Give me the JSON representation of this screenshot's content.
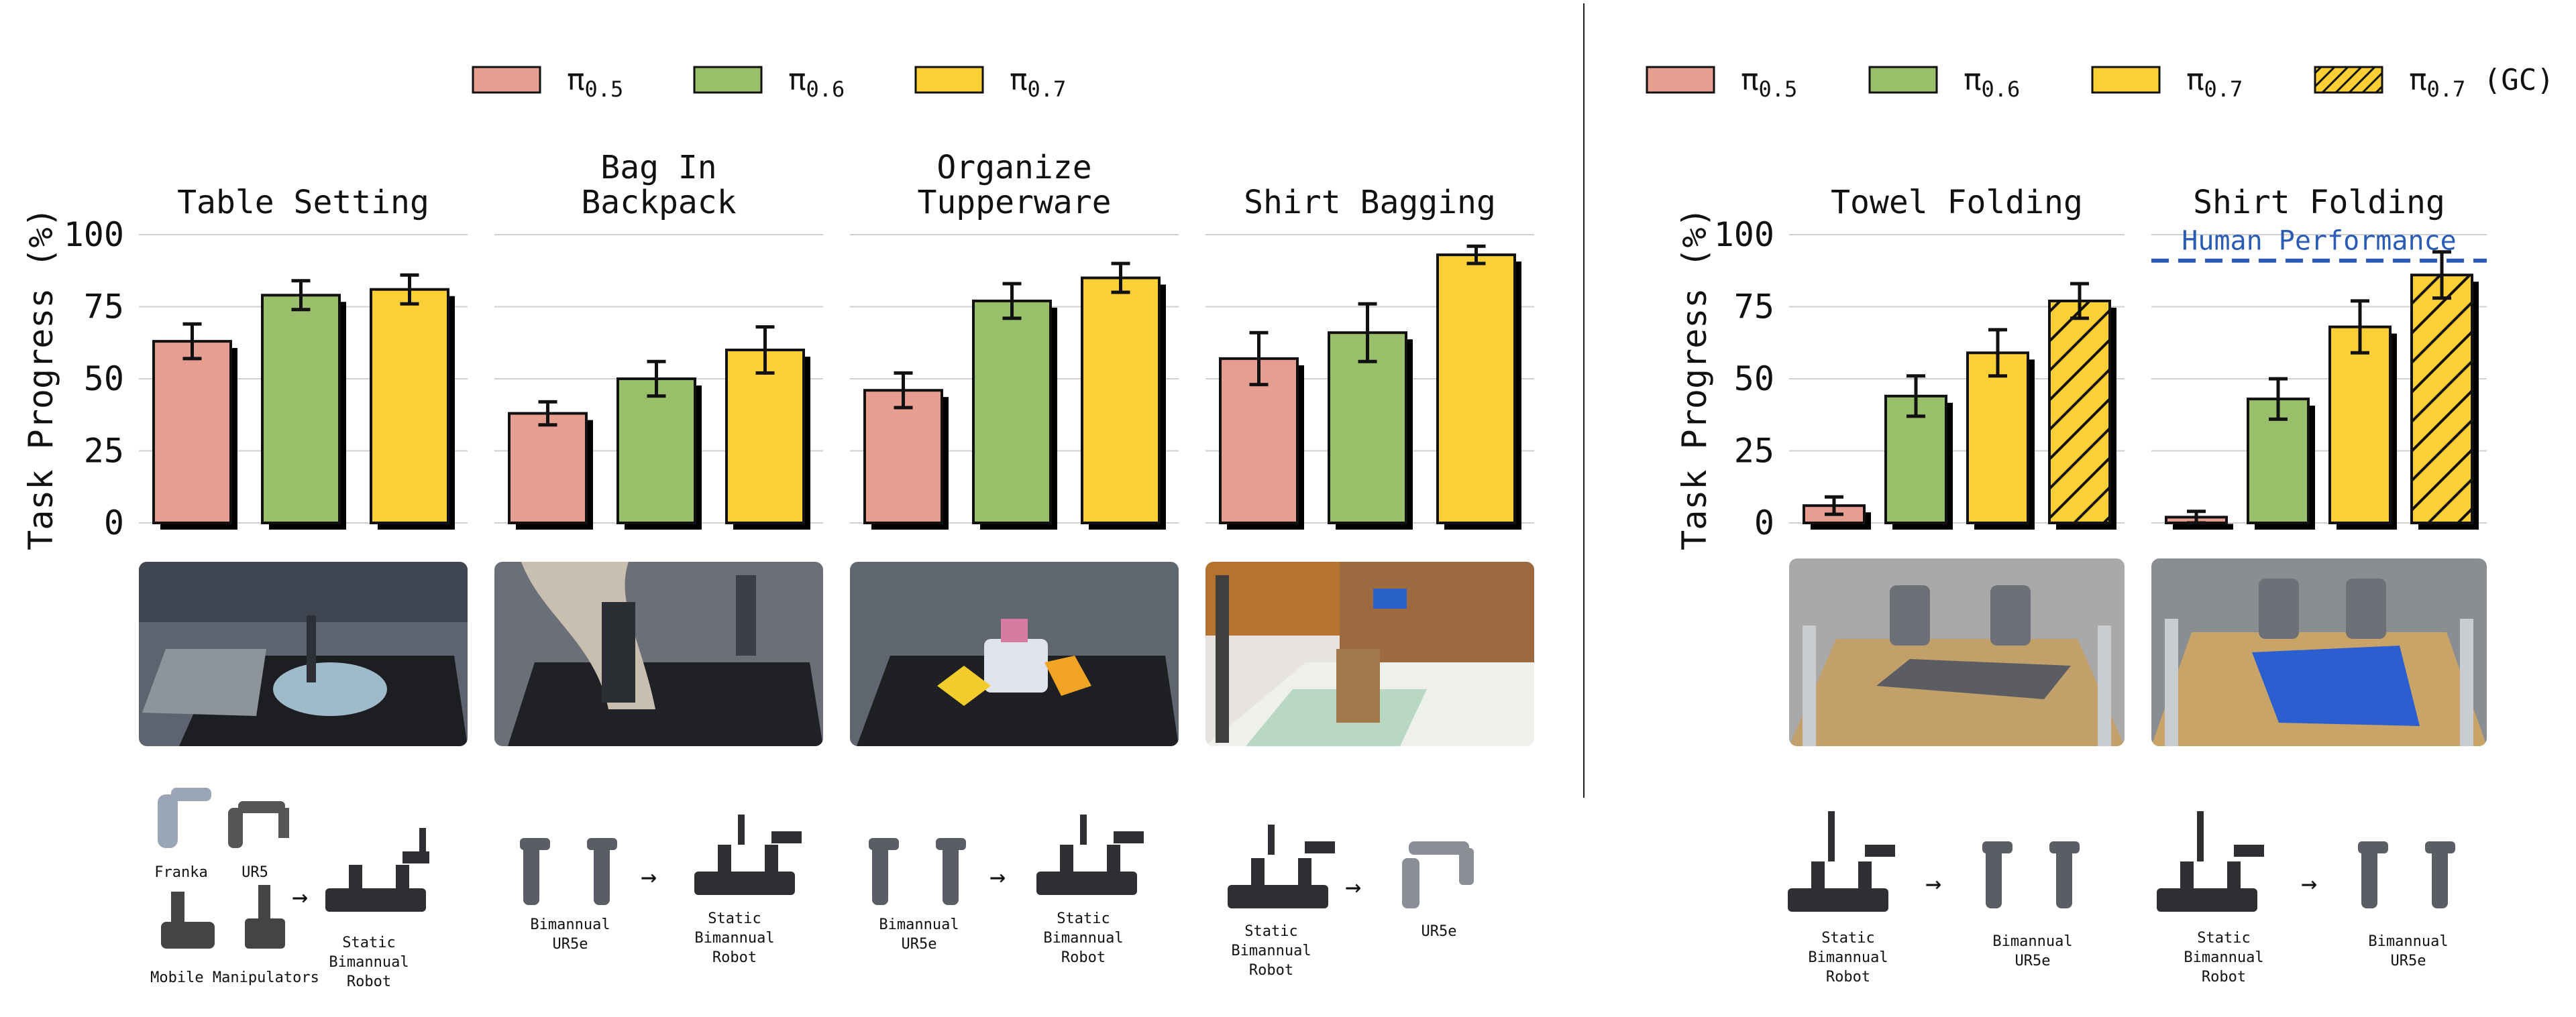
{
  "legends": [
    {
      "entries": [
        {
          "label": "π",
          "sub": "0.5",
          "suffix": "",
          "color": "#E59E90",
          "hatch": false
        },
        {
          "label": "π",
          "sub": "0.6",
          "suffix": "",
          "color": "#99BF6A",
          "hatch": false
        },
        {
          "label": "π",
          "sub": "0.7",
          "suffix": "",
          "color": "#FDD135",
          "hatch": false
        }
      ]
    },
    {
      "entries": [
        {
          "label": "π",
          "sub": "0.5",
          "suffix": "",
          "color": "#E59E90",
          "hatch": false
        },
        {
          "label": "π",
          "sub": "0.6",
          "suffix": "",
          "color": "#99BF6A",
          "hatch": false
        },
        {
          "label": "π",
          "sub": "0.7",
          "suffix": "",
          "color": "#FDD135",
          "hatch": false
        },
        {
          "label": "π",
          "sub": "0.7",
          "suffix": " (GC)",
          "color": "#FDD135",
          "hatch": true
        }
      ]
    }
  ],
  "ylabel": "Task Progress (%)",
  "chart_data": [
    {
      "type": "bar",
      "title": [
        "Table Setting"
      ],
      "yticks": [
        0,
        25,
        50,
        75,
        100
      ],
      "ylim": [
        0,
        100
      ],
      "series": [
        {
          "name": "π0.5",
          "value": 63,
          "err": 6
        },
        {
          "name": "π0.6",
          "value": 79,
          "err": 5
        },
        {
          "name": "π0.7",
          "value": 81,
          "err": 5
        }
      ]
    },
    {
      "type": "bar",
      "title": [
        "Bag In",
        "Backpack"
      ],
      "yticks": [
        0,
        25,
        50,
        75,
        100
      ],
      "ylim": [
        0,
        100
      ],
      "series": [
        {
          "name": "π0.5",
          "value": 38,
          "err": 4
        },
        {
          "name": "π0.6",
          "value": 50,
          "err": 6
        },
        {
          "name": "π0.7",
          "value": 60,
          "err": 8
        }
      ]
    },
    {
      "type": "bar",
      "title": [
        "Organize",
        "Tupperware"
      ],
      "yticks": [
        0,
        25,
        50,
        75,
        100
      ],
      "ylim": [
        0,
        100
      ],
      "series": [
        {
          "name": "π0.5",
          "value": 46,
          "err": 6
        },
        {
          "name": "π0.6",
          "value": 77,
          "err": 6
        },
        {
          "name": "π0.7",
          "value": 85,
          "err": 5
        }
      ]
    },
    {
      "type": "bar",
      "title": [
        "Shirt Bagging"
      ],
      "yticks": [
        0,
        25,
        50,
        75,
        100
      ],
      "ylim": [
        0,
        100
      ],
      "series": [
        {
          "name": "π0.5",
          "value": 57,
          "err": 9
        },
        {
          "name": "π0.6",
          "value": 66,
          "err": 10
        },
        {
          "name": "π0.7",
          "value": 93,
          "err": 3
        }
      ]
    },
    {
      "type": "bar",
      "title": [
        "Towel Folding"
      ],
      "yticks": [
        0,
        25,
        50,
        75,
        100
      ],
      "ylim": [
        0,
        100
      ],
      "series": [
        {
          "name": "π0.5",
          "value": 6,
          "err": 3
        },
        {
          "name": "π0.6",
          "value": 44,
          "err": 7
        },
        {
          "name": "π0.7",
          "value": 59,
          "err": 8
        },
        {
          "name": "π0.7 (GC)",
          "value": 77,
          "err": 6
        }
      ]
    },
    {
      "type": "bar",
      "title": [
        "Shirt Folding"
      ],
      "yticks": [
        0,
        25,
        50,
        75,
        100
      ],
      "ylim": [
        0,
        100
      ],
      "reference_line": {
        "label": "Human Performance",
        "value": 91,
        "color": "#2A5BB5"
      },
      "series": [
        {
          "name": "π0.5",
          "value": 2,
          "err": 2
        },
        {
          "name": "π0.6",
          "value": 43,
          "err": 7
        },
        {
          "name": "π0.7",
          "value": 68,
          "err": 9
        },
        {
          "name": "π0.7 (GC)",
          "value": 86,
          "err": 8
        }
      ]
    }
  ],
  "robot_captions": {
    "g1": {
      "franka": "Franka",
      "ur5": "UR5",
      "mobile": "Mobile Manipulators",
      "target": "Static\nBimannual\nRobot"
    },
    "g2": {
      "source": "Bimannual\nUR5e",
      "target": "Static\nBimannual\nRobot"
    },
    "g3": {
      "source": "Bimannual\nUR5e",
      "target": "Static\nBimannual\nRobot"
    },
    "g4": {
      "source": "Static\nBimannual\nRobot",
      "target": "UR5e"
    },
    "g5": {
      "source": "Static\nBimannual\nRobot",
      "target": "Bimannual\nUR5e"
    },
    "g6": {
      "source": "Static\nBimannual\nRobot",
      "target": "Bimannual\nUR5e"
    }
  },
  "arrow_glyph": "→"
}
